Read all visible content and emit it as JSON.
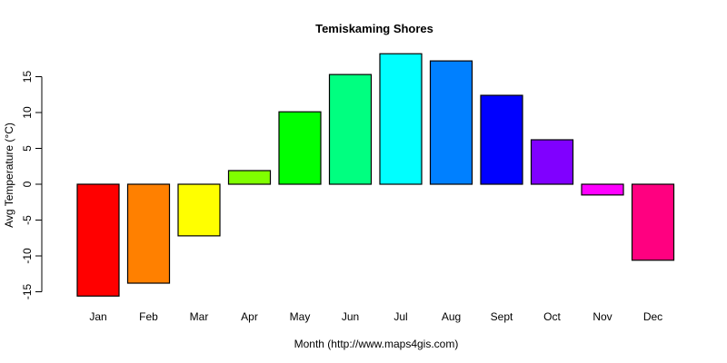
{
  "chart_data": {
    "type": "bar",
    "title": "Temiskaming Shores",
    "xlabel": "Month (http://www.maps4gis.com)",
    "ylabel": "Avg Temperature (°C)",
    "categories": [
      "Jan",
      "Feb",
      "Mar",
      "Apr",
      "May",
      "Jun",
      "Jul",
      "Aug",
      "Sept",
      "Oct",
      "Nov",
      "Dec"
    ],
    "values": [
      -15.6,
      -13.8,
      -7.2,
      1.9,
      10.1,
      15.3,
      18.2,
      17.2,
      12.4,
      6.2,
      -1.5,
      -10.6
    ],
    "colors": [
      "#FF0000",
      "#FF8000",
      "#FFFF00",
      "#80FF00",
      "#00FF00",
      "#00FF80",
      "#00FFFF",
      "#0080FF",
      "#0000FF",
      "#8000FF",
      "#FF00FF",
      "#FF0080"
    ],
    "yticks": [
      -15,
      -10,
      -5,
      0,
      5,
      10,
      15
    ],
    "ylim": [
      -15.6,
      18.2
    ],
    "grid": false,
    "legend": null
  }
}
